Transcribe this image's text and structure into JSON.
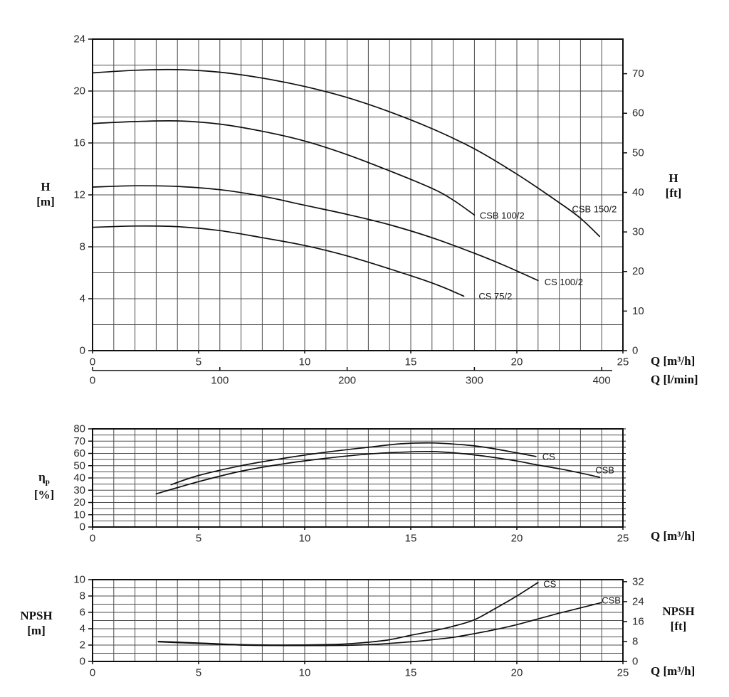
{
  "labels": {
    "head_y_left": {
      "line1": "H",
      "line2": "[m]"
    },
    "head_y_right": {
      "line1": "H",
      "line2": "[ft]"
    },
    "head_x_primary": "Q [m³/h]",
    "head_x_secondary": "Q [l/min]",
    "eta": {
      "symbol": "η",
      "sub": "p",
      "unit": "[%]"
    },
    "eff_x": "Q [m³/h]",
    "npsh_y_left": {
      "line1": "NPSH",
      "line2": "[m]"
    },
    "npsh_y_right": {
      "line1": "NPSH",
      "line2": "[ft]"
    },
    "npsh_x": "Q [m³/h]"
  },
  "chart_data": [
    {
      "id": "head",
      "type": "line",
      "title": "Pump head vs flow",
      "x_axis": {
        "label": "Q [m³/h]",
        "min": 0,
        "max": 25,
        "grid_step": 1,
        "tick_labels": [
          0,
          5,
          10,
          15,
          20,
          25
        ]
      },
      "x2_axis": {
        "label": "Q [l/min]",
        "tick_labels": [
          0,
          100,
          200,
          300,
          400
        ],
        "lmin_per_m3h": 16.6667
      },
      "y_axis": {
        "label": "H [m]",
        "min": 0,
        "max": 24,
        "grid_step": 2,
        "tick_labels": [
          0,
          4,
          8,
          12,
          16,
          20,
          24
        ]
      },
      "y2_axis": {
        "label": "H [ft]",
        "tick_labels": [
          0,
          10,
          20,
          30,
          40,
          50,
          60,
          70
        ],
        "m_per_ft": 0.3048
      },
      "series": [
        {
          "name": "CSB 150/2",
          "label_pos": [
            22.6,
            10.9
          ],
          "points": [
            [
              0,
              21.4
            ],
            [
              2,
              21.6
            ],
            [
              4,
              21.65
            ],
            [
              6,
              21.45
            ],
            [
              8,
              21.0
            ],
            [
              10,
              20.35
            ],
            [
              12,
              19.5
            ],
            [
              14,
              18.4
            ],
            [
              16,
              17.1
            ],
            [
              18,
              15.55
            ],
            [
              20,
              13.6
            ],
            [
              22,
              11.4
            ],
            [
              23,
              10.2
            ],
            [
              23.9,
              8.8
            ]
          ]
        },
        {
          "name": "CSB 100/2",
          "label_pos": [
            18.25,
            10.4
          ],
          "points": [
            [
              0,
              17.5
            ],
            [
              2,
              17.65
            ],
            [
              4,
              17.7
            ],
            [
              6,
              17.45
            ],
            [
              8,
              16.9
            ],
            [
              10,
              16.15
            ],
            [
              12,
              15.1
            ],
            [
              14,
              13.85
            ],
            [
              16,
              12.5
            ],
            [
              17,
              11.6
            ],
            [
              18,
              10.45
            ]
          ]
        },
        {
          "name": "CS 100/2",
          "label_pos": [
            21.3,
            5.3
          ],
          "points": [
            [
              0,
              12.6
            ],
            [
              2,
              12.7
            ],
            [
              4,
              12.65
            ],
            [
              6,
              12.4
            ],
            [
              8,
              11.9
            ],
            [
              10,
              11.2
            ],
            [
              12,
              10.5
            ],
            [
              14,
              9.7
            ],
            [
              16,
              8.7
            ],
            [
              18,
              7.5
            ],
            [
              19.5,
              6.5
            ],
            [
              21,
              5.4
            ]
          ]
        },
        {
          "name": "CS 75/2",
          "label_pos": [
            18.2,
            4.2
          ],
          "points": [
            [
              0,
              9.5
            ],
            [
              2,
              9.6
            ],
            [
              4,
              9.55
            ],
            [
              6,
              9.25
            ],
            [
              8,
              8.7
            ],
            [
              10,
              8.1
            ],
            [
              12,
              7.3
            ],
            [
              14,
              6.3
            ],
            [
              15.5,
              5.5
            ],
            [
              16.5,
              4.9
            ],
            [
              17.5,
              4.2
            ]
          ]
        }
      ]
    },
    {
      "id": "efficiency",
      "type": "line",
      "title": "Pump efficiency vs flow",
      "x_axis": {
        "label": "Q [m³/h]",
        "min": 0,
        "max": 25,
        "grid_step": 1,
        "tick_labels": [
          0,
          5,
          10,
          15,
          20,
          25
        ]
      },
      "y_axis": {
        "label": "ηp [%]",
        "min": 0,
        "max": 80,
        "grid_step": 5,
        "tick_labels": [
          0,
          10,
          20,
          30,
          40,
          50,
          60,
          70,
          80
        ]
      },
      "right_tick_step": 5,
      "series": [
        {
          "name": "CS",
          "label_pos": [
            21.2,
            57.5
          ],
          "points": [
            [
              3.7,
              34.5
            ],
            [
              5,
              42
            ],
            [
              7,
              50
            ],
            [
              9,
              56
            ],
            [
              11,
              61
            ],
            [
              13,
              65
            ],
            [
              14.5,
              67.8
            ],
            [
              16,
              68.5
            ],
            [
              17.5,
              67
            ],
            [
              18.5,
              65
            ],
            [
              19.5,
              62
            ],
            [
              20.9,
              57.5
            ]
          ]
        },
        {
          "name": "CSB",
          "label_pos": [
            23.7,
            46.5
          ],
          "points": [
            [
              3,
              27
            ],
            [
              5,
              37
            ],
            [
              7,
              45.5
            ],
            [
              9,
              51.5
            ],
            [
              11,
              56
            ],
            [
              13,
              59.5
            ],
            [
              15,
              61.3
            ],
            [
              16,
              61.5
            ],
            [
              17,
              60.5
            ],
            [
              18,
              58.8
            ],
            [
              19,
              56.5
            ],
            [
              20,
              53.8
            ],
            [
              21,
              50.5
            ],
            [
              22,
              47.5
            ],
            [
              23,
              44
            ],
            [
              23.9,
              40.5
            ]
          ]
        }
      ]
    },
    {
      "id": "npsh",
      "type": "line",
      "title": "NPSH vs flow",
      "x_axis": {
        "label": "Q [m³/h]",
        "min": 0,
        "max": 25,
        "grid_step": 1,
        "tick_labels": [
          0,
          5,
          10,
          15,
          20,
          25
        ]
      },
      "y_axis": {
        "label": "NPSH [m]",
        "min": 0,
        "max": 10,
        "grid_step": 1,
        "tick_labels": [
          0,
          2,
          4,
          6,
          8,
          10
        ]
      },
      "y2_axis": {
        "label": "NPSH [ft]",
        "tick_labels": [
          0,
          8,
          16,
          24,
          32
        ],
        "m_per_ft": 0.3048
      },
      "series": [
        {
          "name": "CS",
          "label_pos": [
            21.25,
            9.5
          ],
          "points": [
            [
              3.1,
              2.45
            ],
            [
              5,
              2.25
            ],
            [
              7,
              2.05
            ],
            [
              9,
              2.0
            ],
            [
              11,
              2.05
            ],
            [
              12,
              2.15
            ],
            [
              13,
              2.35
            ],
            [
              14,
              2.65
            ],
            [
              15,
              3.2
            ],
            [
              16,
              3.7
            ],
            [
              17,
              4.3
            ],
            [
              18,
              5.1
            ],
            [
              19,
              6.5
            ],
            [
              20,
              8.0
            ],
            [
              21,
              9.65
            ]
          ]
        },
        {
          "name": "CSB",
          "label_pos": [
            24.0,
            7.5
          ],
          "points": [
            [
              3.1,
              2.4
            ],
            [
              5,
              2.2
            ],
            [
              7,
              2.0
            ],
            [
              9,
              1.95
            ],
            [
              11,
              1.95
            ],
            [
              13,
              2.05
            ],
            [
              15,
              2.4
            ],
            [
              16,
              2.65
            ],
            [
              17,
              2.95
            ],
            [
              18,
              3.4
            ],
            [
              19,
              3.9
            ],
            [
              20,
              4.5
            ],
            [
              21,
              5.2
            ],
            [
              22,
              5.9
            ],
            [
              23,
              6.55
            ],
            [
              24,
              7.2
            ]
          ]
        }
      ]
    }
  ]
}
